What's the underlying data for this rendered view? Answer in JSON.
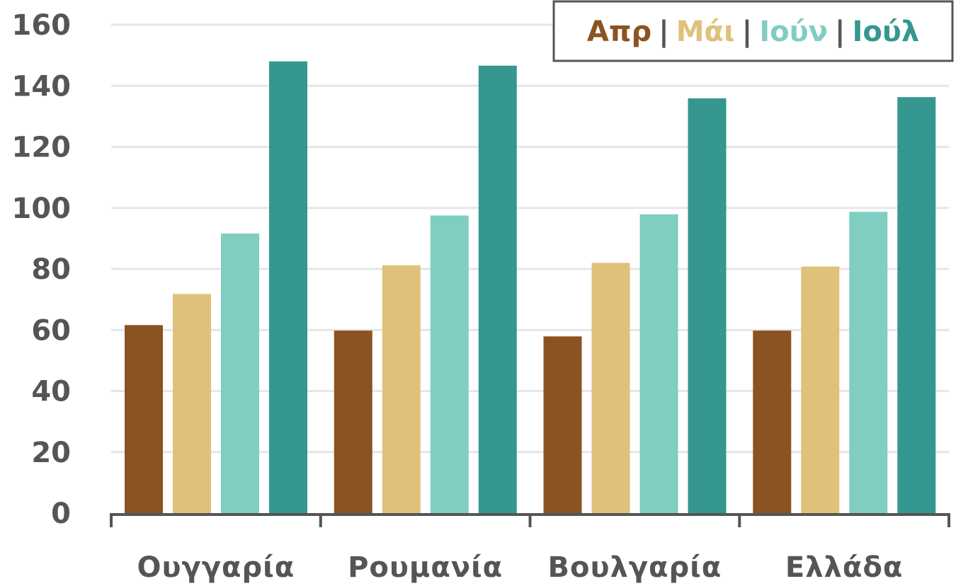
{
  "chart_data": {
    "type": "bar",
    "categories": [
      "Ουγγαρία",
      "Ρουμανία",
      "Βουλγαρία",
      "Ελλάδα"
    ],
    "series": [
      {
        "name": "Απρ",
        "color": "#8B5322",
        "values": [
          61.6,
          59.8,
          57.9,
          59.8
        ]
      },
      {
        "name": "Μάι",
        "color": "#DFC17C",
        "values": [
          71.8,
          81.2,
          82.0,
          80.8
        ]
      },
      {
        "name": "Ιούν",
        "color": "#80CDC1",
        "values": [
          91.6,
          97.5,
          97.9,
          98.7
        ]
      },
      {
        "name": "Ιούλ",
        "color": "#35978F",
        "values": [
          148.0,
          146.6,
          135.9,
          136.3
        ]
      }
    ],
    "ylim": [
      0,
      160
    ],
    "yticks": [
      0,
      20,
      40,
      60,
      80,
      100,
      120,
      140,
      160
    ],
    "grid": true,
    "legend": {
      "position": "top-right",
      "separator": "|"
    }
  }
}
